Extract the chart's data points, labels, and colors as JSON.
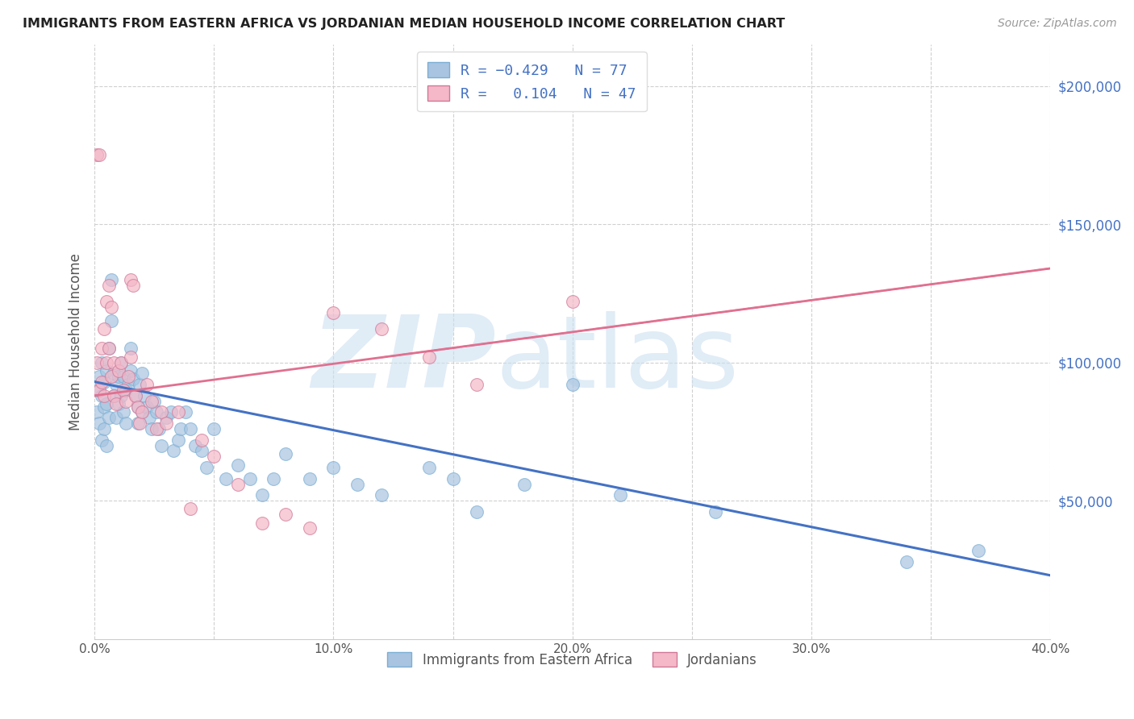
{
  "title": "IMMIGRANTS FROM EASTERN AFRICA VS JORDANIAN MEDIAN HOUSEHOLD INCOME CORRELATION CHART",
  "source": "Source: ZipAtlas.com",
  "ylabel": "Median Household Income",
  "xlim": [
    0.0,
    0.4
  ],
  "ylim": [
    0,
    215000
  ],
  "ytick_labels": [
    "$50,000",
    "$100,000",
    "$150,000",
    "$200,000"
  ],
  "ytick_values": [
    50000,
    100000,
    150000,
    200000
  ],
  "xtick_labels": [
    "0.0%",
    "",
    "10.0%",
    "",
    "20.0%",
    "",
    "30.0%",
    "",
    "40.0%"
  ],
  "xtick_values": [
    0.0,
    0.05,
    0.1,
    0.15,
    0.2,
    0.25,
    0.3,
    0.35,
    0.4
  ],
  "blue_color": "#a8c4e0",
  "pink_color": "#f4b8c8",
  "blue_line_color": "#4472c4",
  "pink_line_color": "#e07090",
  "legend_r_blue": "-0.429",
  "legend_n_blue": "77",
  "legend_r_pink": "0.104",
  "legend_n_pink": "47",
  "blue_intercept": 93000,
  "blue_slope": -175000,
  "pink_intercept": 88000,
  "pink_slope": 115000,
  "blue_x": [
    0.001,
    0.001,
    0.002,
    0.002,
    0.003,
    0.003,
    0.003,
    0.004,
    0.004,
    0.004,
    0.005,
    0.005,
    0.005,
    0.006,
    0.006,
    0.007,
    0.007,
    0.008,
    0.008,
    0.009,
    0.009,
    0.01,
    0.01,
    0.011,
    0.011,
    0.012,
    0.012,
    0.013,
    0.013,
    0.014,
    0.015,
    0.015,
    0.016,
    0.017,
    0.018,
    0.018,
    0.019,
    0.02,
    0.02,
    0.021,
    0.022,
    0.023,
    0.024,
    0.025,
    0.026,
    0.027,
    0.028,
    0.03,
    0.032,
    0.033,
    0.035,
    0.036,
    0.038,
    0.04,
    0.042,
    0.045,
    0.047,
    0.05,
    0.055,
    0.06,
    0.065,
    0.07,
    0.075,
    0.08,
    0.09,
    0.1,
    0.11,
    0.12,
    0.14,
    0.15,
    0.16,
    0.18,
    0.2,
    0.22,
    0.26,
    0.34,
    0.37
  ],
  "blue_y": [
    90000,
    82000,
    95000,
    78000,
    100000,
    88000,
    72000,
    93000,
    84000,
    76000,
    97000,
    85000,
    70000,
    105000,
    80000,
    130000,
    115000,
    96000,
    88000,
    92000,
    80000,
    95000,
    85000,
    100000,
    88000,
    95000,
    82000,
    90000,
    78000,
    92000,
    97000,
    105000,
    94000,
    88000,
    84000,
    78000,
    92000,
    96000,
    82000,
    88000,
    84000,
    80000,
    76000,
    86000,
    82000,
    76000,
    70000,
    80000,
    82000,
    68000,
    72000,
    76000,
    82000,
    76000,
    70000,
    68000,
    62000,
    76000,
    58000,
    63000,
    58000,
    52000,
    58000,
    67000,
    58000,
    62000,
    56000,
    52000,
    62000,
    58000,
    46000,
    56000,
    92000,
    52000,
    46000,
    28000,
    32000
  ],
  "pink_x": [
    0.001,
    0.001,
    0.002,
    0.002,
    0.003,
    0.003,
    0.004,
    0.004,
    0.005,
    0.005,
    0.006,
    0.006,
    0.007,
    0.007,
    0.008,
    0.008,
    0.009,
    0.01,
    0.011,
    0.012,
    0.013,
    0.014,
    0.015,
    0.015,
    0.016,
    0.017,
    0.018,
    0.019,
    0.02,
    0.022,
    0.024,
    0.026,
    0.028,
    0.03,
    0.035,
    0.04,
    0.045,
    0.05,
    0.06,
    0.07,
    0.08,
    0.09,
    0.1,
    0.12,
    0.14,
    0.16,
    0.2
  ],
  "pink_y": [
    100000,
    175000,
    90000,
    175000,
    105000,
    93000,
    112000,
    88000,
    122000,
    100000,
    128000,
    105000,
    120000,
    95000,
    100000,
    88000,
    85000,
    97000,
    100000,
    90000,
    86000,
    95000,
    130000,
    102000,
    128000,
    88000,
    84000,
    78000,
    82000,
    92000,
    86000,
    76000,
    82000,
    78000,
    82000,
    47000,
    72000,
    66000,
    56000,
    42000,
    45000,
    40000,
    118000,
    112000,
    102000,
    92000,
    122000
  ],
  "background_color": "#ffffff",
  "grid_color": "#d0d0d0"
}
